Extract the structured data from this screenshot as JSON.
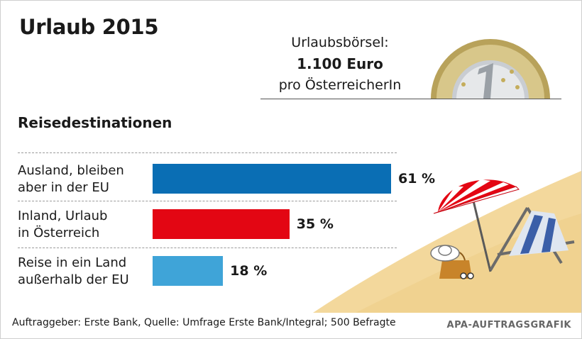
{
  "header": {
    "title": "Urlaub 2015",
    "budget_line1": "Urlaubsbörsel:",
    "budget_amount": "1.100 Euro",
    "budget_line3": "pro ÖsterreicherIn"
  },
  "chart_data": {
    "type": "bar",
    "orientation": "horizontal",
    "title": "Reisedestinationen",
    "categories": [
      [
        "Ausland, bleiben",
        "aber in der EU"
      ],
      [
        "Inland, Urlaub",
        "in Österreich"
      ],
      [
        "Reise in ein Land",
        "außerhalb der EU"
      ]
    ],
    "values": [
      61,
      35,
      18
    ],
    "value_labels": [
      "61 %",
      "35 %",
      "18 %"
    ],
    "unit": "%",
    "colors": [
      "#0a6eb4",
      "#e30613",
      "#3fa4d8"
    ]
  },
  "footer": {
    "source": "Auftraggeber: Erste Bank, Quelle: Umfrage Erste Bank/Integral; 500 Befragte",
    "credit": "APA-AUFTRAGSGRAFIK"
  },
  "decorations": {
    "coin": "one-euro-coin-icon",
    "beach": "beach-umbrella-deckchair-illustration",
    "sand_color": "#f2d79b"
  }
}
